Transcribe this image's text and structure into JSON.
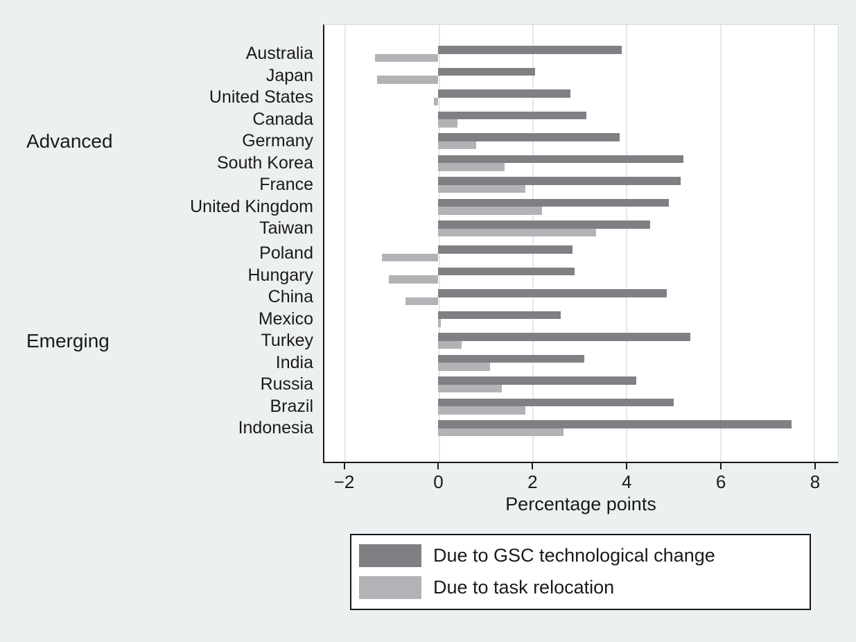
{
  "figure": {
    "background_color": "#edf0f1",
    "plot_background_color": "#ffffff"
  },
  "chart_data": {
    "type": "bar",
    "orientation": "horizontal",
    "title": "",
    "xlabel": "Percentage points",
    "ylabel": "",
    "xlim": [
      -2.45,
      8.5
    ],
    "x_ticks": [
      -2,
      0,
      2,
      4,
      6,
      8
    ],
    "x_tick_labels": [
      "−2",
      "0",
      "2",
      "4",
      "6",
      "8"
    ],
    "grid": true,
    "gridline_color": "#e4e7e9",
    "legend_position": "bottom",
    "series_colors": {
      "gsc": "#7e8084",
      "relocation": "#b1b3b6"
    },
    "legend": [
      {
        "name": "Due to GSC technological change",
        "color": "#7e8084"
      },
      {
        "name": "Due to task relocation",
        "color": "#b1b3b6"
      }
    ],
    "groups": [
      {
        "label": "Advanced",
        "countries": [
          {
            "name": "Australia",
            "gsc": 3.9,
            "relocation": -1.35
          },
          {
            "name": "Japan",
            "gsc": 2.05,
            "relocation": -1.3
          },
          {
            "name": "United States",
            "gsc": 2.8,
            "relocation": -0.1
          },
          {
            "name": "Canada",
            "gsc": 3.15,
            "relocation": 0.4
          },
          {
            "name": "Germany",
            "gsc": 3.85,
            "relocation": 0.8
          },
          {
            "name": "South Korea",
            "gsc": 5.2,
            "relocation": 1.4
          },
          {
            "name": "France",
            "gsc": 5.15,
            "relocation": 1.85
          },
          {
            "name": "United Kingdom",
            "gsc": 4.9,
            "relocation": 2.2
          },
          {
            "name": "Taiwan",
            "gsc": 4.5,
            "relocation": 3.35
          }
        ]
      },
      {
        "label": "Emerging",
        "countries": [
          {
            "name": "Poland",
            "gsc": 2.85,
            "relocation": -1.2
          },
          {
            "name": "Hungary",
            "gsc": 2.9,
            "relocation": -1.05
          },
          {
            "name": "China",
            "gsc": 4.85,
            "relocation": -0.7
          },
          {
            "name": "Mexico",
            "gsc": 2.6,
            "relocation": 0.05
          },
          {
            "name": "Turkey",
            "gsc": 5.35,
            "relocation": 0.5
          },
          {
            "name": "India",
            "gsc": 3.1,
            "relocation": 1.1
          },
          {
            "name": "Russia",
            "gsc": 4.2,
            "relocation": 1.35
          },
          {
            "name": "Brazil",
            "gsc": 5.0,
            "relocation": 1.85
          },
          {
            "name": "Indonesia",
            "gsc": 7.5,
            "relocation": 2.65
          }
        ]
      }
    ]
  }
}
